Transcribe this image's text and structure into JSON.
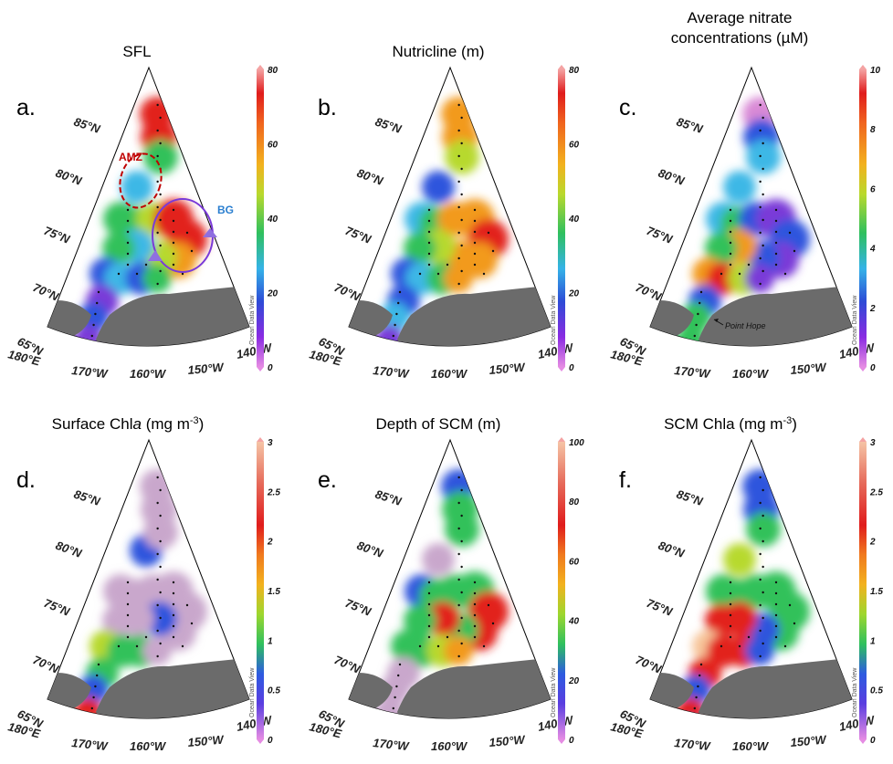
{
  "chart_data": [
    {
      "type": "heatmap",
      "panel_label": "a.",
      "title": "SFL",
      "colorbar": {
        "range": [
          0,
          80
        ],
        "ticks": [
          "0",
          "20",
          "40",
          "60",
          "80"
        ],
        "scheme": "rainbow"
      },
      "lat_labels": [
        "85°N",
        "80°N",
        "75°N",
        "70°N",
        "65°N"
      ],
      "lon_labels": [
        "180°E",
        "170°W",
        "160°W",
        "150°W",
        "140°W"
      ],
      "watermark": "Ocean Data View",
      "annotations": [
        {
          "text": "AMZ",
          "color": "#c00000"
        },
        {
          "text": "BG",
          "color": "#2b7fd0"
        }
      ]
    },
    {
      "type": "heatmap",
      "panel_label": "b.",
      "title": "Nutricline (m)",
      "colorbar": {
        "range": [
          0,
          80
        ],
        "ticks": [
          "0",
          "20",
          "40",
          "60",
          "80"
        ],
        "scheme": "rainbow"
      },
      "lat_labels": [
        "85°N",
        "80°N",
        "75°N",
        "70°N",
        "65°N"
      ],
      "lon_labels": [
        "180°E",
        "170°W",
        "160°W",
        "150°W",
        "140°W"
      ],
      "watermark": "Ocean Data View"
    },
    {
      "type": "heatmap",
      "panel_label": "c.",
      "title": "Average nitrate concentrations (µM)",
      "title_lines": [
        "Average nitrate",
        "concentrations (µM)"
      ],
      "colorbar": {
        "range": [
          0,
          10
        ],
        "ticks": [
          "0",
          "2",
          "4",
          "6",
          "8",
          "10"
        ],
        "scheme": "rainbow"
      },
      "lat_labels": [
        "85°N",
        "80°N",
        "75°N",
        "70°N",
        "65°N"
      ],
      "lon_labels": [
        "180°E",
        "170°W",
        "160°W",
        "150°W",
        "140°W"
      ],
      "watermark": "Ocean Data View",
      "annotations": [
        {
          "text": "Point Hope"
        }
      ]
    },
    {
      "type": "heatmap",
      "panel_label": "d.",
      "title": "Surface Chla (mg m-3)",
      "title_parts": {
        "main": "Surface Chl",
        "italic": "a",
        "unit": " (mg m",
        "sup": "-3",
        "close": ")"
      },
      "colorbar": {
        "range": [
          0,
          3
        ],
        "ticks": [
          "0",
          "0.5",
          "1",
          "1.5",
          "2",
          "2.5",
          "3"
        ],
        "scheme": "chla"
      },
      "lat_labels": [
        "85°N",
        "80°N",
        "75°N",
        "70°N",
        "65°N"
      ],
      "lon_labels": [
        "180°E",
        "170°W",
        "160°W",
        "150°W",
        "140°W"
      ],
      "watermark": "Ocean Data View"
    },
    {
      "type": "heatmap",
      "panel_label": "e.",
      "title": "Depth of SCM (m)",
      "colorbar": {
        "range": [
          0,
          100
        ],
        "ticks": [
          "0",
          "20",
          "40",
          "60",
          "80",
          "100"
        ],
        "scheme": "chla"
      },
      "lat_labels": [
        "85°N",
        "80°N",
        "75°N",
        "70°N",
        "65°N"
      ],
      "lon_labels": [
        "180°E",
        "170°W",
        "160°W",
        "150°W",
        "140°W"
      ],
      "watermark": "Ocean Data View"
    },
    {
      "type": "heatmap",
      "panel_label": "f.",
      "title": "SCM Chla (mg m-3)",
      "title_parts": {
        "main": "SCM Chla",
        "italic": "",
        "unit": " (mg m",
        "sup": "-3",
        "close": ")"
      },
      "colorbar": {
        "range": [
          0,
          3
        ],
        "ticks": [
          "0",
          "0.5",
          "1",
          "1.5",
          "2",
          "2.5",
          "3"
        ],
        "scheme": "chla"
      },
      "lat_labels": [
        "85°N",
        "80°N",
        "75°N",
        "70°N",
        "65°N"
      ],
      "lon_labels": [
        "180°E",
        "170°W",
        "160°W",
        "150°W",
        "140°W"
      ],
      "watermark": "Ocean Data View"
    }
  ]
}
